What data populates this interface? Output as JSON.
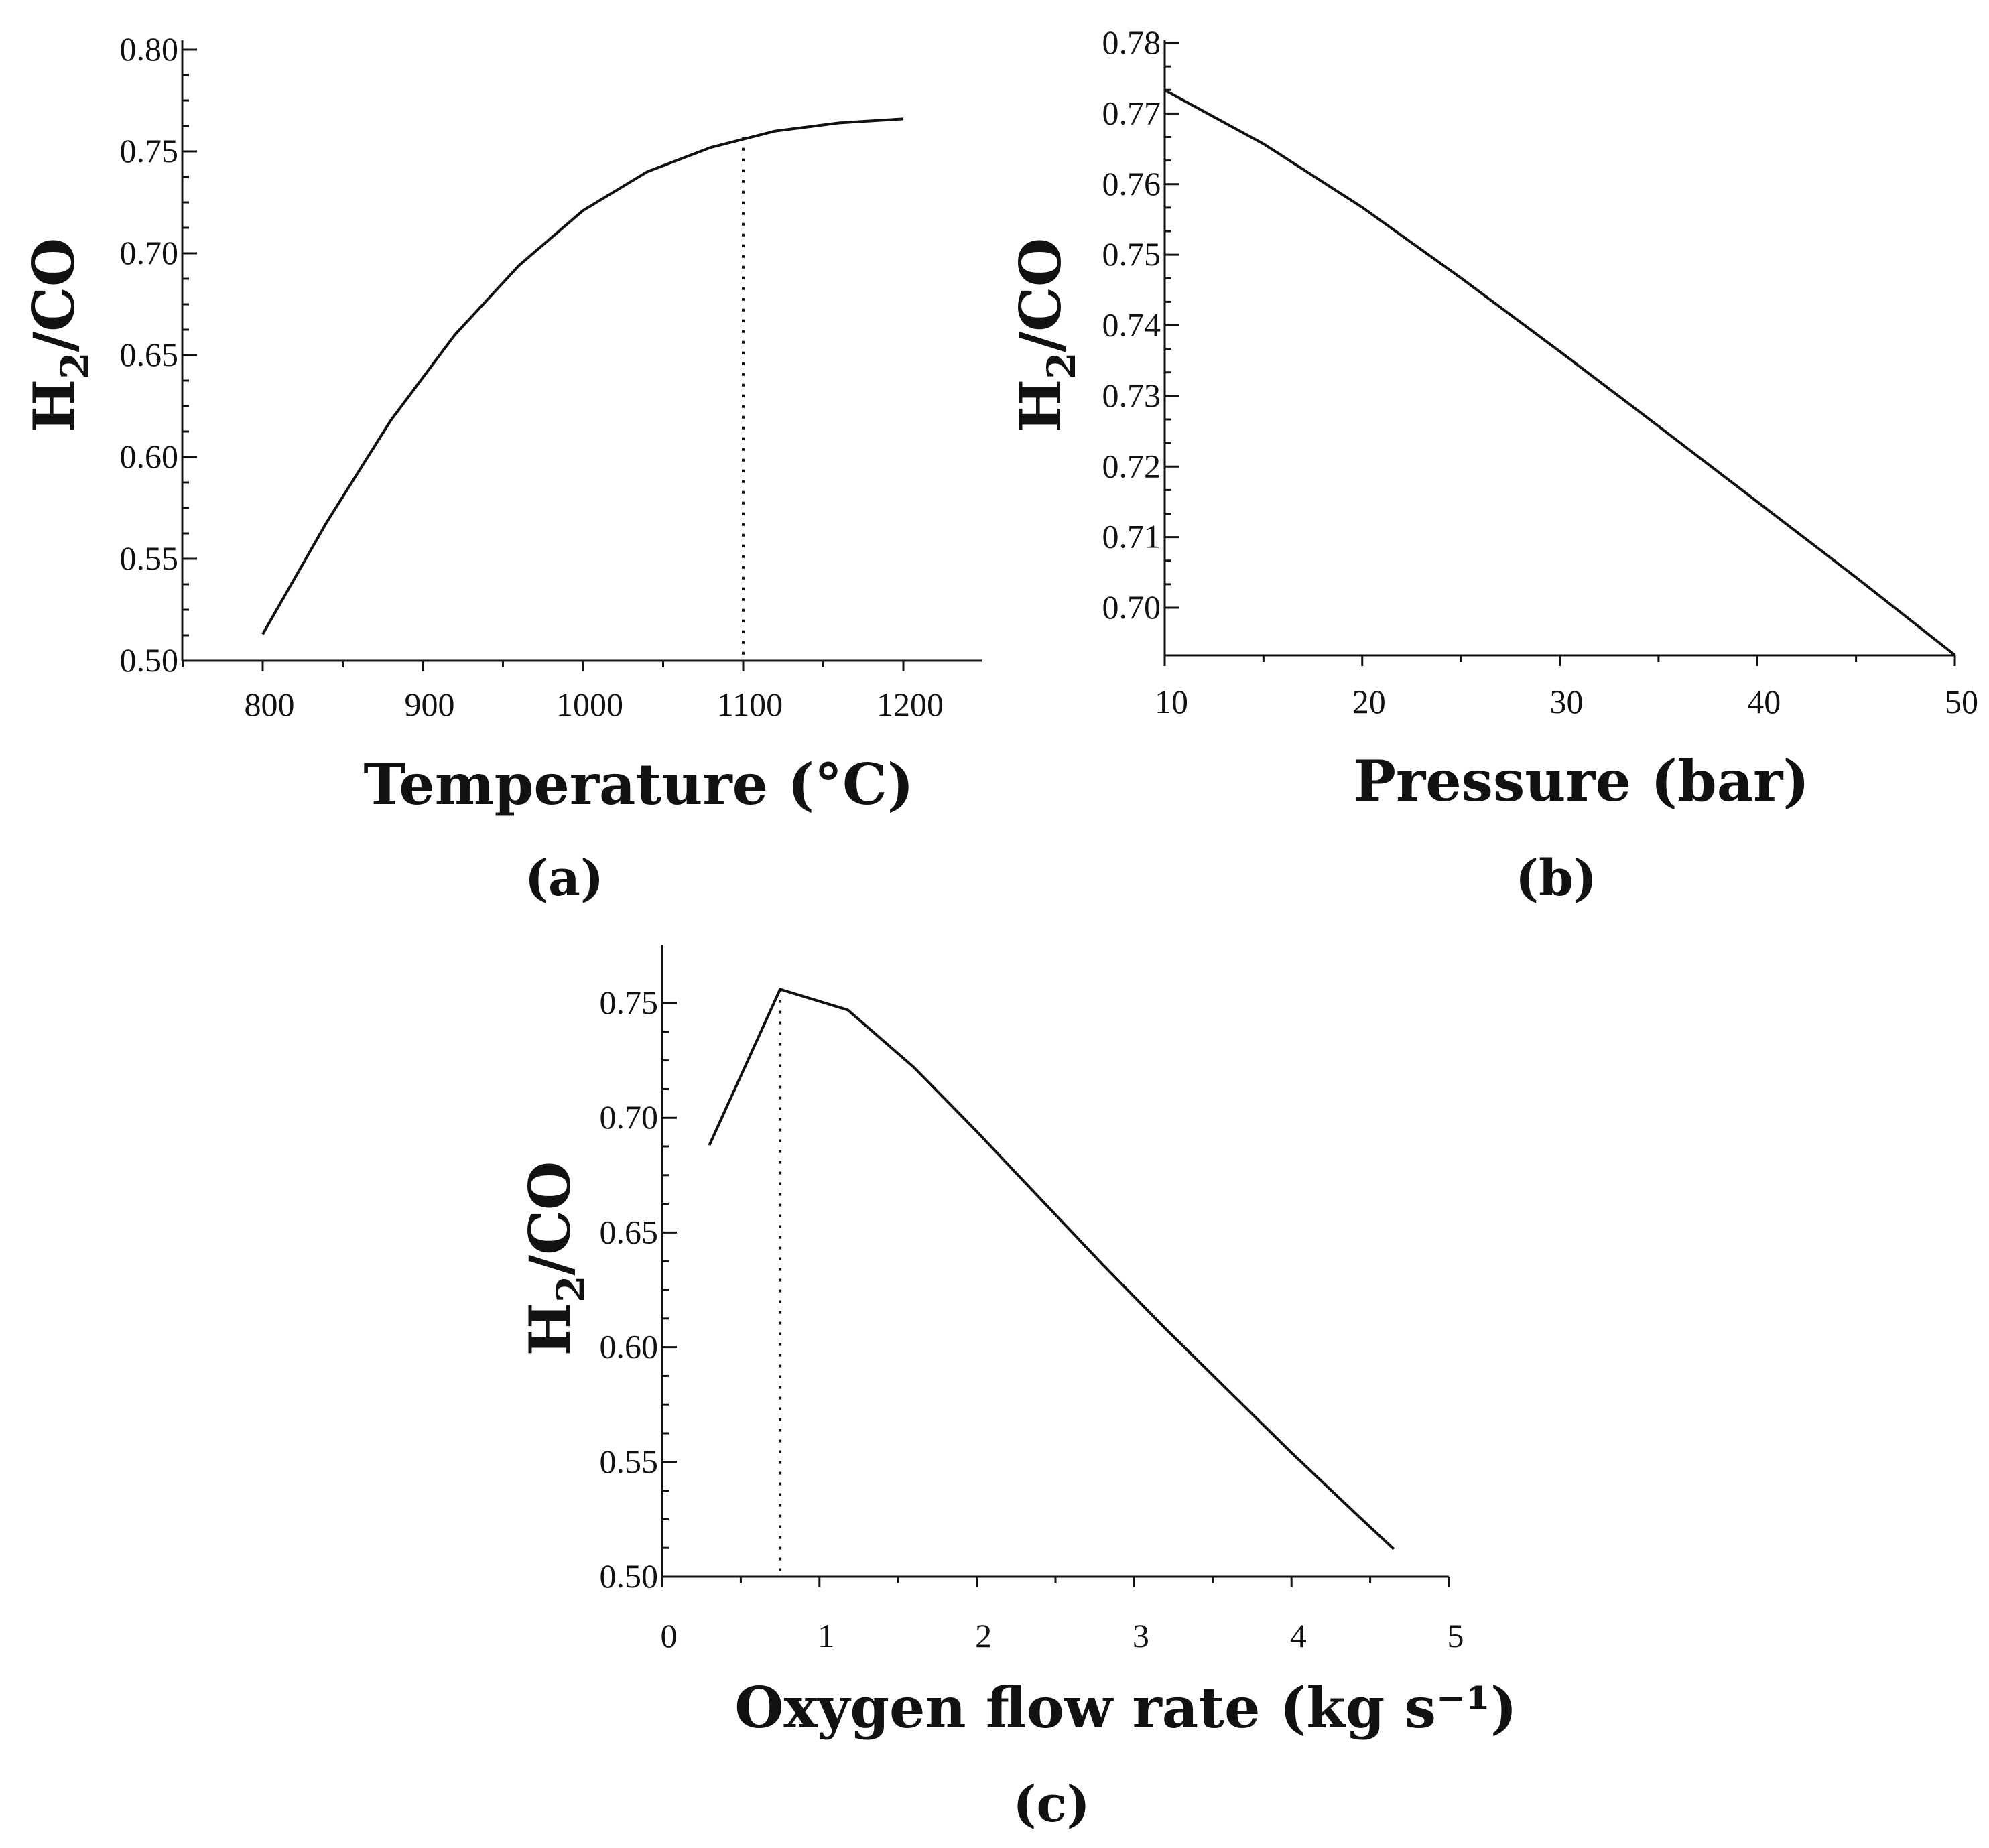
{
  "chart_data": [
    {
      "panel": "(a)",
      "type": "line",
      "xlabel": "Temperature (°C)",
      "ylabel": {
        "main": "H",
        "sub": "2",
        "rest": "/CO"
      },
      "xlim": [
        750,
        1250
      ],
      "ylim": [
        0.5,
        0.8
      ],
      "xticks": [
        800,
        900,
        1000,
        1100,
        1200
      ],
      "xtick_labels": [
        "800",
        "900",
        "1000",
        "1100",
        "1200"
      ],
      "yticks": [
        0.5,
        0.55,
        0.6,
        0.65,
        0.7,
        0.75,
        0.8
      ],
      "ytick_labels": [
        "0.50",
        "0.55",
        "0.60",
        "0.65",
        "0.70",
        "0.75",
        "0.80"
      ],
      "series": [
        {
          "name": "H2/CO",
          "x": [
            800,
            840,
            880,
            920,
            960,
            1000,
            1040,
            1080,
            1120,
            1160,
            1200
          ],
          "y": [
            0.513,
            0.568,
            0.618,
            0.66,
            0.694,
            0.721,
            0.74,
            0.752,
            0.76,
            0.764,
            0.766
          ]
        }
      ],
      "marker_x": 1100,
      "marker_y": 0.757
    },
    {
      "panel": "(b)",
      "type": "line",
      "xlabel": "Pressure (bar)",
      "ylabel": {
        "main": "H",
        "sub": "2",
        "rest": "/CO"
      },
      "xlim": [
        10,
        50
      ],
      "ylim": [
        0.695,
        0.78
      ],
      "xticks": [
        10,
        20,
        30,
        40,
        50
      ],
      "xtick_labels": [
        "10",
        "20",
        "30",
        "40",
        "50"
      ],
      "yticks": [
        0.7,
        0.71,
        0.72,
        0.73,
        0.74,
        0.75,
        0.76,
        0.77,
        0.78
      ],
      "ytick_labels": [
        "0.70",
        "0.71",
        "0.72",
        "0.73",
        "0.74",
        "0.75",
        "0.76",
        "0.77",
        "0.78"
      ],
      "series": [
        {
          "name": "H2/CO",
          "x": [
            10,
            15,
            20,
            25,
            30,
            35,
            40,
            45,
            50
          ],
          "y": [
            0.7733,
            0.7657,
            0.7567,
            0.7467,
            0.7363,
            0.7257,
            0.715,
            0.7043,
            0.6933
          ]
        }
      ]
    },
    {
      "panel": "(c)",
      "type": "line",
      "xlabel": "Oxygen flow rate (kg s⁻¹)",
      "ylabel": {
        "main": "H",
        "sub": "2",
        "rest": "/CO"
      },
      "xlim": [
        0,
        5
      ],
      "ylim": [
        0.5,
        0.77
      ],
      "xticks": [
        0,
        1,
        2,
        3,
        4,
        5
      ],
      "xtick_labels": [
        "0",
        "1",
        "2",
        "3",
        "4",
        "5"
      ],
      "yticks": [
        0.5,
        0.55,
        0.6,
        0.65,
        0.7,
        0.75
      ],
      "ytick_labels": [
        "0.50",
        "0.55",
        "0.60",
        "0.65",
        "0.70",
        "0.75"
      ],
      "series": [
        {
          "name": "H2/CO",
          "x": [
            0.3,
            0.75,
            1.18,
            1.6,
            2.0,
            2.4,
            2.8,
            3.2,
            3.6,
            4.0,
            4.4,
            4.65
          ],
          "y": [
            0.688,
            0.756,
            0.747,
            0.722,
            0.694,
            0.665,
            0.636,
            0.608,
            0.581,
            0.554,
            0.528,
            0.512
          ]
        }
      ],
      "marker_x": 0.75,
      "marker_y": 0.756
    }
  ]
}
